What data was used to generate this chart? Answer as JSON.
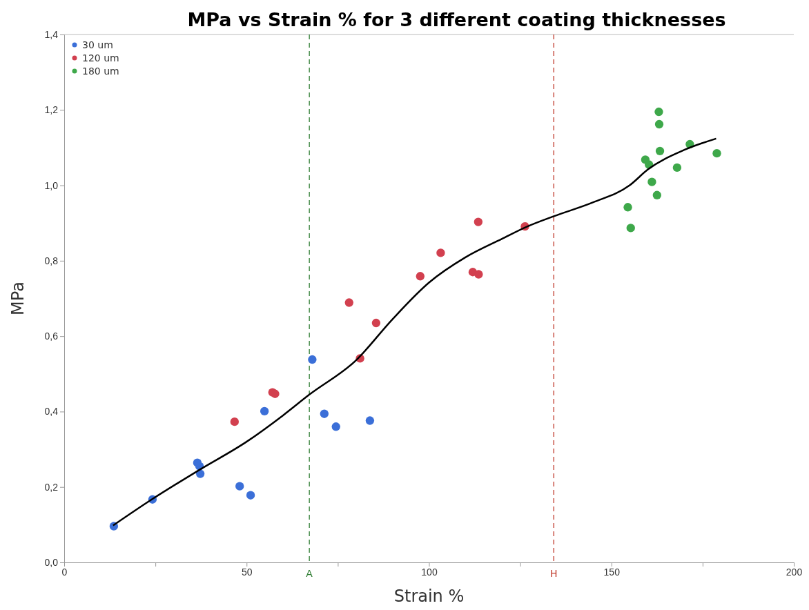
{
  "chart_data": {
    "type": "scatter",
    "title": "MPa vs Strain % for 3 different coating thicknesses",
    "xlabel": "Strain %",
    "ylabel": "MPa",
    "xlim": [
      0,
      200
    ],
    "xticks": [
      0,
      {
        "value": 25,
        "label": null
      },
      50,
      {
        "value": 75,
        "label": null
      },
      100,
      {
        "value": 125,
        "label": null
      },
      150,
      {
        "value": 175,
        "label": null
      },
      200
    ],
    "ylim": [
      0,
      1.4
    ],
    "yticks": [
      {
        "value": 0,
        "label": "0,0"
      },
      {
        "value": 0.2,
        "label": "0,2"
      },
      {
        "value": 0.4,
        "label": "0,4"
      },
      {
        "value": 0.6,
        "label": "0,6"
      },
      {
        "value": 0.8,
        "label": "0,8"
      },
      {
        "value": 1.0,
        "label": "1,0"
      },
      {
        "value": 1.2,
        "label": "1,2"
      },
      {
        "value": 1.4,
        "label": "1,4"
      }
    ],
    "grid": false,
    "legend": "top left",
    "marker": "circle",
    "ref_lines": [
      {
        "axis": "x",
        "value": 67.2,
        "label": "A",
        "color": "#2e7d32",
        "line_style": "dashed"
      },
      {
        "axis": "x",
        "value": 134.2,
        "label": "H",
        "color": "#c0392b",
        "line_style": "dashed"
      }
    ],
    "series": [
      {
        "name": "30 um",
        "color": "#3b6fd8",
        "x": [
          13.6,
          24.2,
          36.5,
          37.1,
          37.3,
          48.1,
          51.1,
          54.9,
          68.0,
          71.3,
          74.5,
          83.8
        ],
        "values": [
          0.096,
          0.167,
          0.264,
          0.255,
          0.235,
          0.202,
          0.178,
          0.401,
          0.538,
          0.394,
          0.36,
          0.376
        ]
      },
      {
        "name": "120 um",
        "color": "#d2404f",
        "x": [
          46.7,
          57.1,
          57.8,
          78.1,
          81.1,
          85.5,
          97.6,
          103.2,
          112.0,
          113.6,
          113.5,
          126.3
        ],
        "values": [
          0.373,
          0.451,
          0.447,
          0.689,
          0.541,
          0.635,
          0.759,
          0.821,
          0.77,
          0.764,
          0.903,
          0.891
        ]
      },
      {
        "name": "180 um",
        "color": "#3ea84a",
        "x": [
          163.0,
          163.1,
          163.3,
          159.3,
          160.3,
          161.1,
          162.5,
          154.5,
          155.3,
          168.0,
          171.5,
          178.9
        ],
        "values": [
          1.195,
          1.162,
          1.091,
          1.068,
          1.055,
          1.009,
          0.974,
          0.942,
          0.887,
          1.047,
          1.109,
          1.085
        ]
      },
      {
        "type": "line",
        "marker": "none",
        "color": "#000000",
        "x": [
          13.4,
          24,
          37,
          50,
          60,
          67.2,
          80,
          90,
          100,
          110,
          120,
          127,
          134.2,
          145,
          155,
          160,
          170,
          178.7
        ],
        "values": [
          0.098,
          0.167,
          0.245,
          0.32,
          0.39,
          0.445,
          0.536,
          0.645,
          0.742,
          0.809,
          0.858,
          0.891,
          0.918,
          0.955,
          1.0,
          1.042,
          1.094,
          1.124
        ]
      }
    ]
  }
}
